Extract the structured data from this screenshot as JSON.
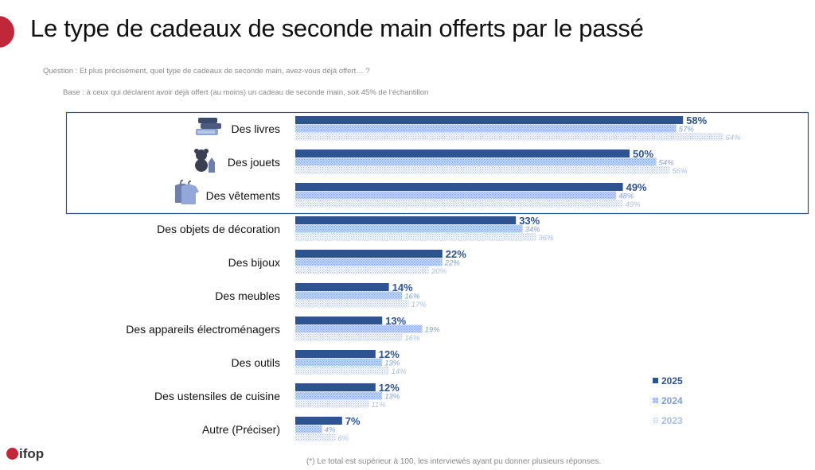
{
  "title": "Le type de cadeaux de seconde main offerts par le passé",
  "question": "Question : Et plus précisément, quel type de cadeaux de seconde main, avez-vous déjà offert… ?",
  "base": "Base : à ceux qui déclarent avoir déjà offert (au moins) un cadeau de seconde main, soit 45% de l’échantillon",
  "footnote": "(*) Le total est supérieur à 100, les interviewés ayant pu donner plusieurs réponses.",
  "logo": "ifop",
  "colors": {
    "accent": "#c0283a",
    "s2025": "#2e5391",
    "s2024": "#7f9fd6",
    "s2023": "#a9bfe6"
  },
  "chart_data": {
    "type": "bar",
    "orientation": "horizontal",
    "title": "",
    "categories": [
      "Des livres",
      "Des jouets",
      "Des vêtements",
      "Des objets de décoration",
      "Des bijoux",
      "Des meubles",
      "Des appareils électroménagers",
      "Des outils",
      "Des ustensiles de cuisine",
      "Autre (Préciser)"
    ],
    "category_icons": [
      "books-icon",
      "teddy-bear-icon",
      "clothes-icon",
      null,
      null,
      null,
      null,
      null,
      null,
      null
    ],
    "highlighted_categories": [
      "Des livres",
      "Des jouets",
      "Des vêtements"
    ],
    "series": [
      {
        "name": "2025",
        "values": [
          58,
          50,
          49,
          33,
          22,
          14,
          13,
          12,
          12,
          7
        ]
      },
      {
        "name": "2024",
        "values": [
          57,
          54,
          48,
          34,
          22,
          16,
          19,
          13,
          13,
          4
        ]
      },
      {
        "name": "2023",
        "values": [
          64,
          56,
          49,
          36,
          20,
          17,
          16,
          14,
          11,
          6
        ]
      }
    ],
    "unit": "%",
    "xlim": [
      0,
      100
    ],
    "grid": false,
    "legend_position": "bottom-right"
  }
}
